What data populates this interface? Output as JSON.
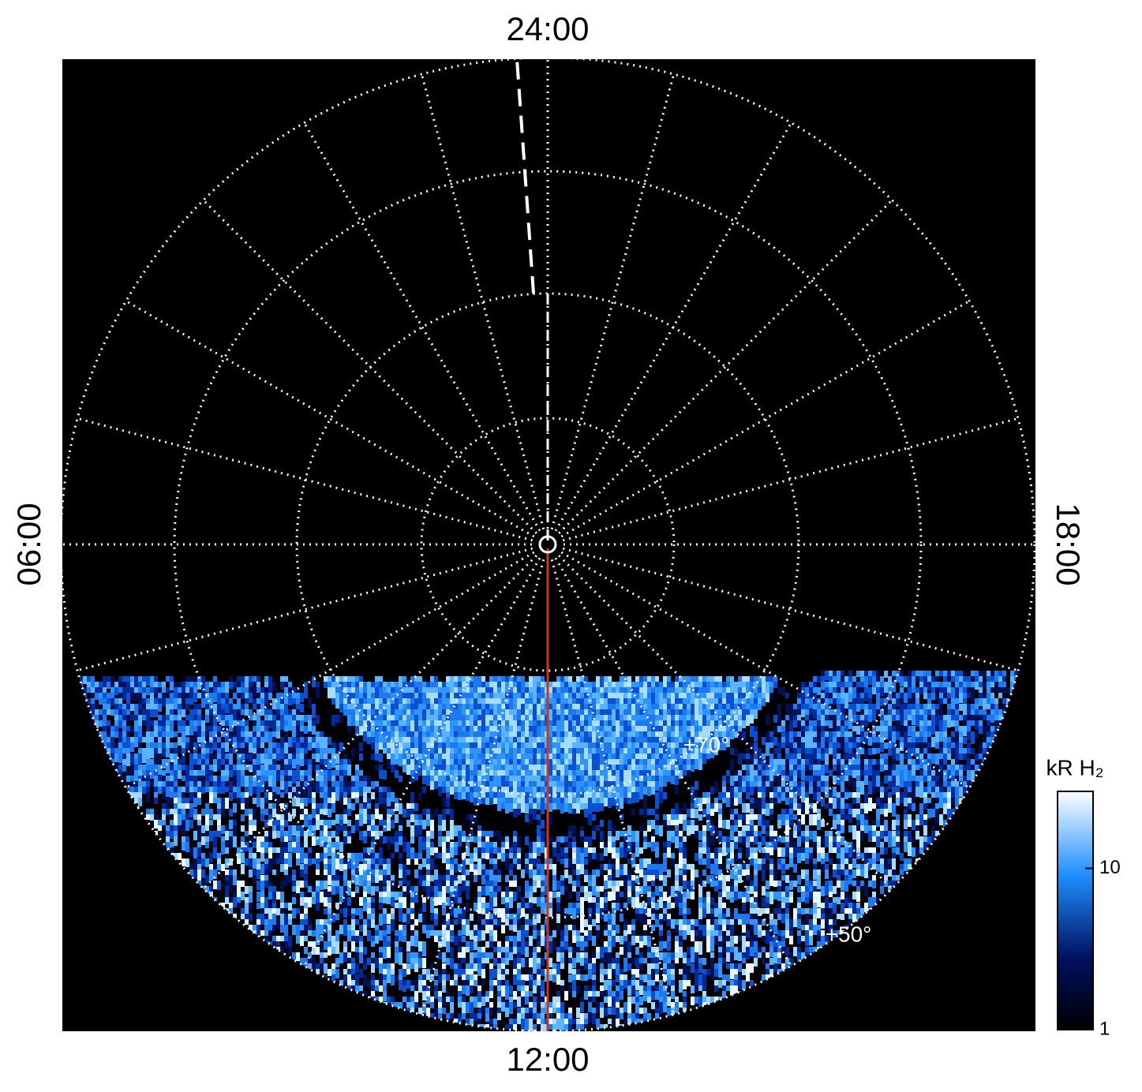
{
  "labels": {
    "top": "24:00",
    "left": "06:00",
    "right": "18:00",
    "bottom": "12:00",
    "lat70": "+70°",
    "lat50": "+50°"
  },
  "colorbar": {
    "label": "kR H₂",
    "scale": "log",
    "lim": [
      1,
      30
    ],
    "ticks": [
      1,
      10
    ]
  }
}
